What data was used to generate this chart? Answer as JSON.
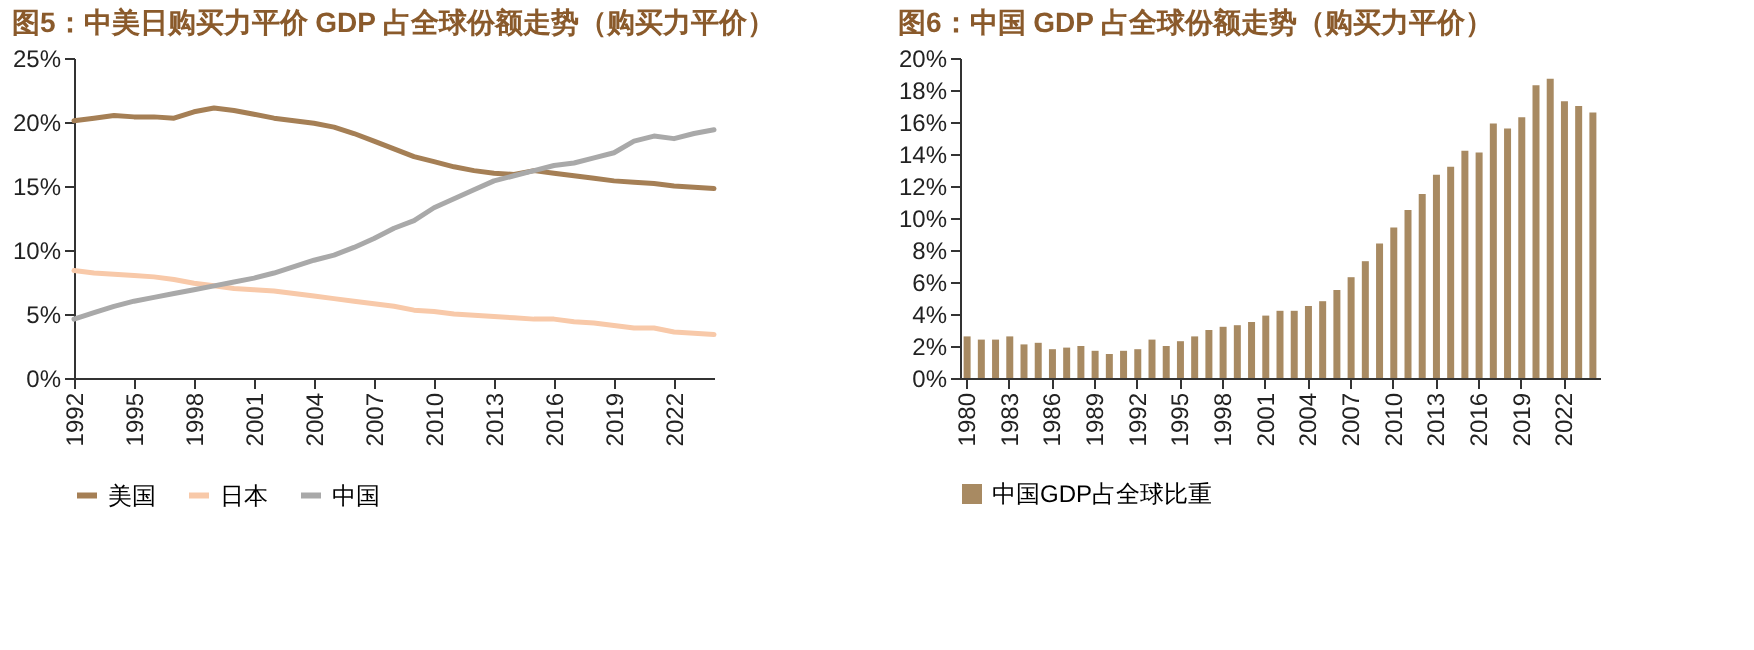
{
  "chart_data": [
    {
      "type": "line",
      "title": "图5：中美日购买力平价 GDP 占全球份额走势（购买力平价）",
      "legend": "bottom",
      "grid": false,
      "marker": "none",
      "line_style": "solid",
      "x": [
        1992,
        1993,
        1994,
        1995,
        1996,
        1997,
        1998,
        1999,
        2000,
        2001,
        2002,
        2003,
        2004,
        2005,
        2006,
        2007,
        2008,
        2009,
        2010,
        2011,
        2012,
        2013,
        2014,
        2015,
        2016,
        2017,
        2018,
        2019,
        2020,
        2021,
        2022,
        2023,
        2024
      ],
      "xlim": [
        1992,
        2024
      ],
      "xticks": [
        1992,
        1995,
        1998,
        2001,
        2004,
        2007,
        2010,
        2013,
        2016,
        2019,
        2022
      ],
      "ylim": [
        0,
        25
      ],
      "yticks": [
        {
          "value": 0,
          "label": "0%"
        },
        {
          "value": 5,
          "label": "5%"
        },
        {
          "value": 10,
          "label": "10%"
        },
        {
          "value": 15,
          "label": "15%"
        },
        {
          "value": 20,
          "label": "20%"
        },
        {
          "value": 25,
          "label": "25%"
        }
      ],
      "series": [
        {
          "name": "美国",
          "color": "#a57f55",
          "values": [
            20.1,
            20.3,
            20.5,
            20.4,
            20.4,
            20.3,
            20.8,
            21.1,
            20.9,
            20.6,
            20.3,
            20.1,
            19.9,
            19.6,
            19.1,
            18.5,
            17.9,
            17.3,
            16.9,
            16.5,
            16.2,
            16.0,
            15.9,
            16.2,
            16.0,
            15.8,
            15.6,
            15.4,
            15.3,
            15.2,
            15.0,
            14.9,
            14.8
          ]
        },
        {
          "name": "日本",
          "color": "#f8c9a9",
          "values": [
            8.4,
            8.2,
            8.1,
            8.0,
            7.9,
            7.7,
            7.4,
            7.2,
            7.0,
            6.9,
            6.8,
            6.6,
            6.4,
            6.2,
            6.0,
            5.8,
            5.6,
            5.3,
            5.2,
            5.0,
            4.9,
            4.8,
            4.7,
            4.6,
            4.6,
            4.4,
            4.3,
            4.1,
            3.9,
            3.9,
            3.6,
            3.5,
            3.4
          ]
        },
        {
          "name": "中国",
          "color": "#a9a9a9",
          "values": [
            4.6,
            5.1,
            5.6,
            6.0,
            6.3,
            6.6,
            6.9,
            7.2,
            7.5,
            7.8,
            8.2,
            8.7,
            9.2,
            9.6,
            10.2,
            10.9,
            11.7,
            12.3,
            13.3,
            14.0,
            14.7,
            15.4,
            15.8,
            16.2,
            16.6,
            16.8,
            17.2,
            17.6,
            18.5,
            18.9,
            18.7,
            19.1,
            19.4
          ]
        }
      ]
    },
    {
      "type": "bar",
      "title": "图6：中国 GDP 占全球份额走势（购买力平价）",
      "legend": "bottom",
      "grid": false,
      "categories": [
        "1980",
        null,
        null,
        "1983",
        null,
        null,
        "1986",
        null,
        null,
        "1989",
        null,
        null,
        "1992",
        null,
        null,
        "1995",
        null,
        null,
        "1998",
        null,
        null,
        "2001",
        null,
        null,
        "2004",
        null,
        null,
        "2007",
        null,
        null,
        "2010",
        null,
        null,
        "2013",
        null,
        null,
        "2016",
        null,
        null,
        "2019",
        null,
        null,
        "2022",
        null,
        null
      ],
      "ylim": [
        0,
        20
      ],
      "yticks": [
        {
          "value": 0,
          "label": "0%"
        },
        {
          "value": 2,
          "label": "2%"
        },
        {
          "value": 4,
          "label": "4%"
        },
        {
          "value": 6,
          "label": "6%"
        },
        {
          "value": 8,
          "label": "8%"
        },
        {
          "value": 10,
          "label": "10%"
        },
        {
          "value": 12,
          "label": "12%"
        },
        {
          "value": 14,
          "label": "14%"
        },
        {
          "value": 16,
          "label": "16%"
        },
        {
          "value": 18,
          "label": "18%"
        },
        {
          "value": 20,
          "label": "20%"
        }
      ],
      "series": [
        {
          "name": "中国GDP占全球比重",
          "color": "#a88a62",
          "values": [
            2.6,
            2.4,
            2.4,
            2.6,
            2.1,
            2.2,
            1.8,
            1.9,
            2.0,
            1.7,
            1.5,
            1.7,
            1.8,
            2.4,
            2.0,
            2.3,
            2.6,
            3.0,
            3.2,
            3.3,
            3.5,
            3.9,
            4.2,
            4.2,
            4.5,
            4.8,
            5.5,
            6.3,
            7.3,
            8.4,
            9.4,
            10.5,
            11.5,
            12.7,
            13.2,
            14.2,
            14.1,
            15.9,
            15.6,
            16.3,
            18.3,
            18.7,
            17.3,
            17.0,
            16.6
          ]
        }
      ]
    }
  ]
}
